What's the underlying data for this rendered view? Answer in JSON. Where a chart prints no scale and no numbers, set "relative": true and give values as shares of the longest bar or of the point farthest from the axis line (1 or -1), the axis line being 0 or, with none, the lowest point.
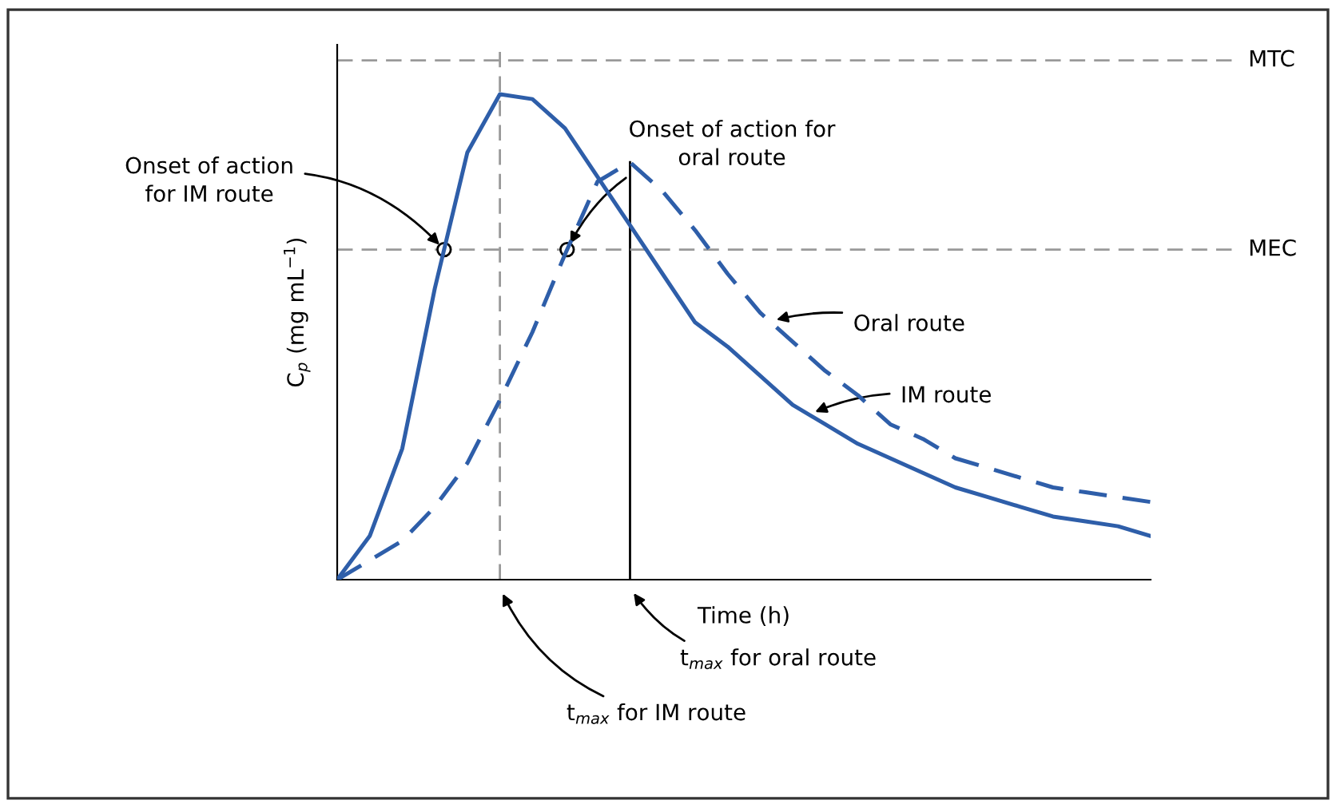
{
  "chart_data": {
    "type": "line",
    "relative": true,
    "xlabel": "Time (h)",
    "ylabel": "C$_{p}$ (mg mL$^{−1}$)",
    "categories": [
      null,
      null,
      null,
      null,
      null,
      null,
      null,
      null,
      null,
      null,
      null,
      null,
      null,
      null,
      null,
      null,
      null,
      null,
      null,
      null,
      null,
      null,
      null,
      null,
      null,
      null
    ],
    "series": [
      {
        "color": "#2e5ea9",
        "line_style": "solid",
        "values": [
          0,
          0.09,
          0.27,
          0.6,
          0.88,
          1.0,
          0.99,
          0.93,
          0.83,
          0.73,
          0.63,
          0.53,
          0.48,
          0.42,
          0.36,
          0.32,
          0.28,
          0.25,
          0.22,
          0.19,
          0.17,
          0.15,
          0.13,
          0.12,
          0.11,
          0.09
        ]
      },
      {
        "color": "#2e5ea9",
        "line_style": "dashed",
        "values": [
          0,
          0.04,
          0.08,
          0.15,
          0.24,
          0.37,
          0.51,
          0.67,
          0.82,
          0.86,
          0.8,
          0.72,
          0.63,
          0.55,
          0.49,
          0.43,
          0.38,
          0.32,
          0.29,
          0.25,
          0.23,
          0.21,
          0.19,
          0.18,
          0.17,
          0.16
        ]
      }
    ],
    "ref_lines": [
      {
        "axis": "y",
        "value": 1.07,
        "label": "MTC",
        "color": "#999999",
        "line_style": "dashed"
      },
      {
        "axis": "y",
        "value": 0.68,
        "label": "MEC",
        "color": "#999999",
        "line_style": "dashed"
      }
    ],
    "annotations": [
      "Onset of action\nfor IM route",
      "Onset of action for\noral route",
      "Oral route",
      "IM route",
      "t$_{max}$ for IM route",
      "t$_{max}$ for oral route"
    ],
    "legend": false,
    "marker": "none"
  }
}
